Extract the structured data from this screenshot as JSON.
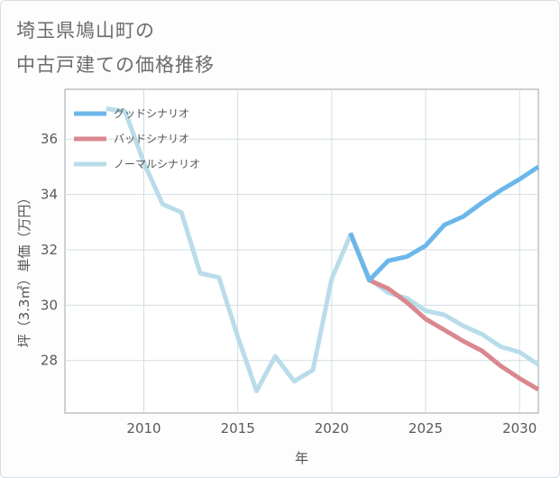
{
  "header": {
    "title_line1": "埼玉県鳩山町の",
    "title_line2": "中古戸建ての価格推移"
  },
  "chart_data": {
    "type": "line",
    "title": "埼玉県鳩山町の中古戸建ての価格推移",
    "xlabel": "年",
    "ylabel": "坪（3.3㎡）単価（万円）",
    "xlim": [
      2005.8,
      2031
    ],
    "ylim": [
      26.1,
      37.8
    ],
    "xticks": [
      2010,
      2015,
      2020,
      2025,
      2030
    ],
    "yticks": [
      28,
      30,
      32,
      34,
      36
    ],
    "grid": true,
    "legend_position": "top-left",
    "series": [
      {
        "name": "グッドシナリオ",
        "color": "#6cb7ea",
        "x": [
          2021,
          2022,
          2023,
          2024,
          2025,
          2026,
          2027,
          2028,
          2029,
          2030,
          2031
        ],
        "values": [
          32.6,
          30.9,
          31.6,
          31.75,
          32.15,
          32.9,
          33.2,
          33.7,
          34.15,
          34.55,
          35.0
        ]
      },
      {
        "name": "バッドシナリオ",
        "color": "#d9888f",
        "x": [
          2021,
          2022,
          2023,
          2024,
          2025,
          2026,
          2027,
          2028,
          2029,
          2030,
          2031
        ],
        "values": [
          32.6,
          30.9,
          30.6,
          30.1,
          29.5,
          29.1,
          28.7,
          28.35,
          27.8,
          27.35,
          26.95
        ]
      },
      {
        "name": "ノーマルシナリオ",
        "color": "#b9dcea",
        "x": [
          2008,
          2009,
          2010,
          2011,
          2012,
          2013,
          2014,
          2015,
          2016,
          2017,
          2018,
          2019,
          2020,
          2021,
          2022,
          2023,
          2024,
          2025,
          2026,
          2027,
          2028,
          2029,
          2030,
          2031
        ],
        "values": [
          37.1,
          37.0,
          35.15,
          33.65,
          33.35,
          31.15,
          31.0,
          28.85,
          26.9,
          28.15,
          27.25,
          27.65,
          30.95,
          32.55,
          30.95,
          30.45,
          30.25,
          29.8,
          29.65,
          29.25,
          28.95,
          28.5,
          28.3,
          27.85
        ]
      }
    ]
  }
}
